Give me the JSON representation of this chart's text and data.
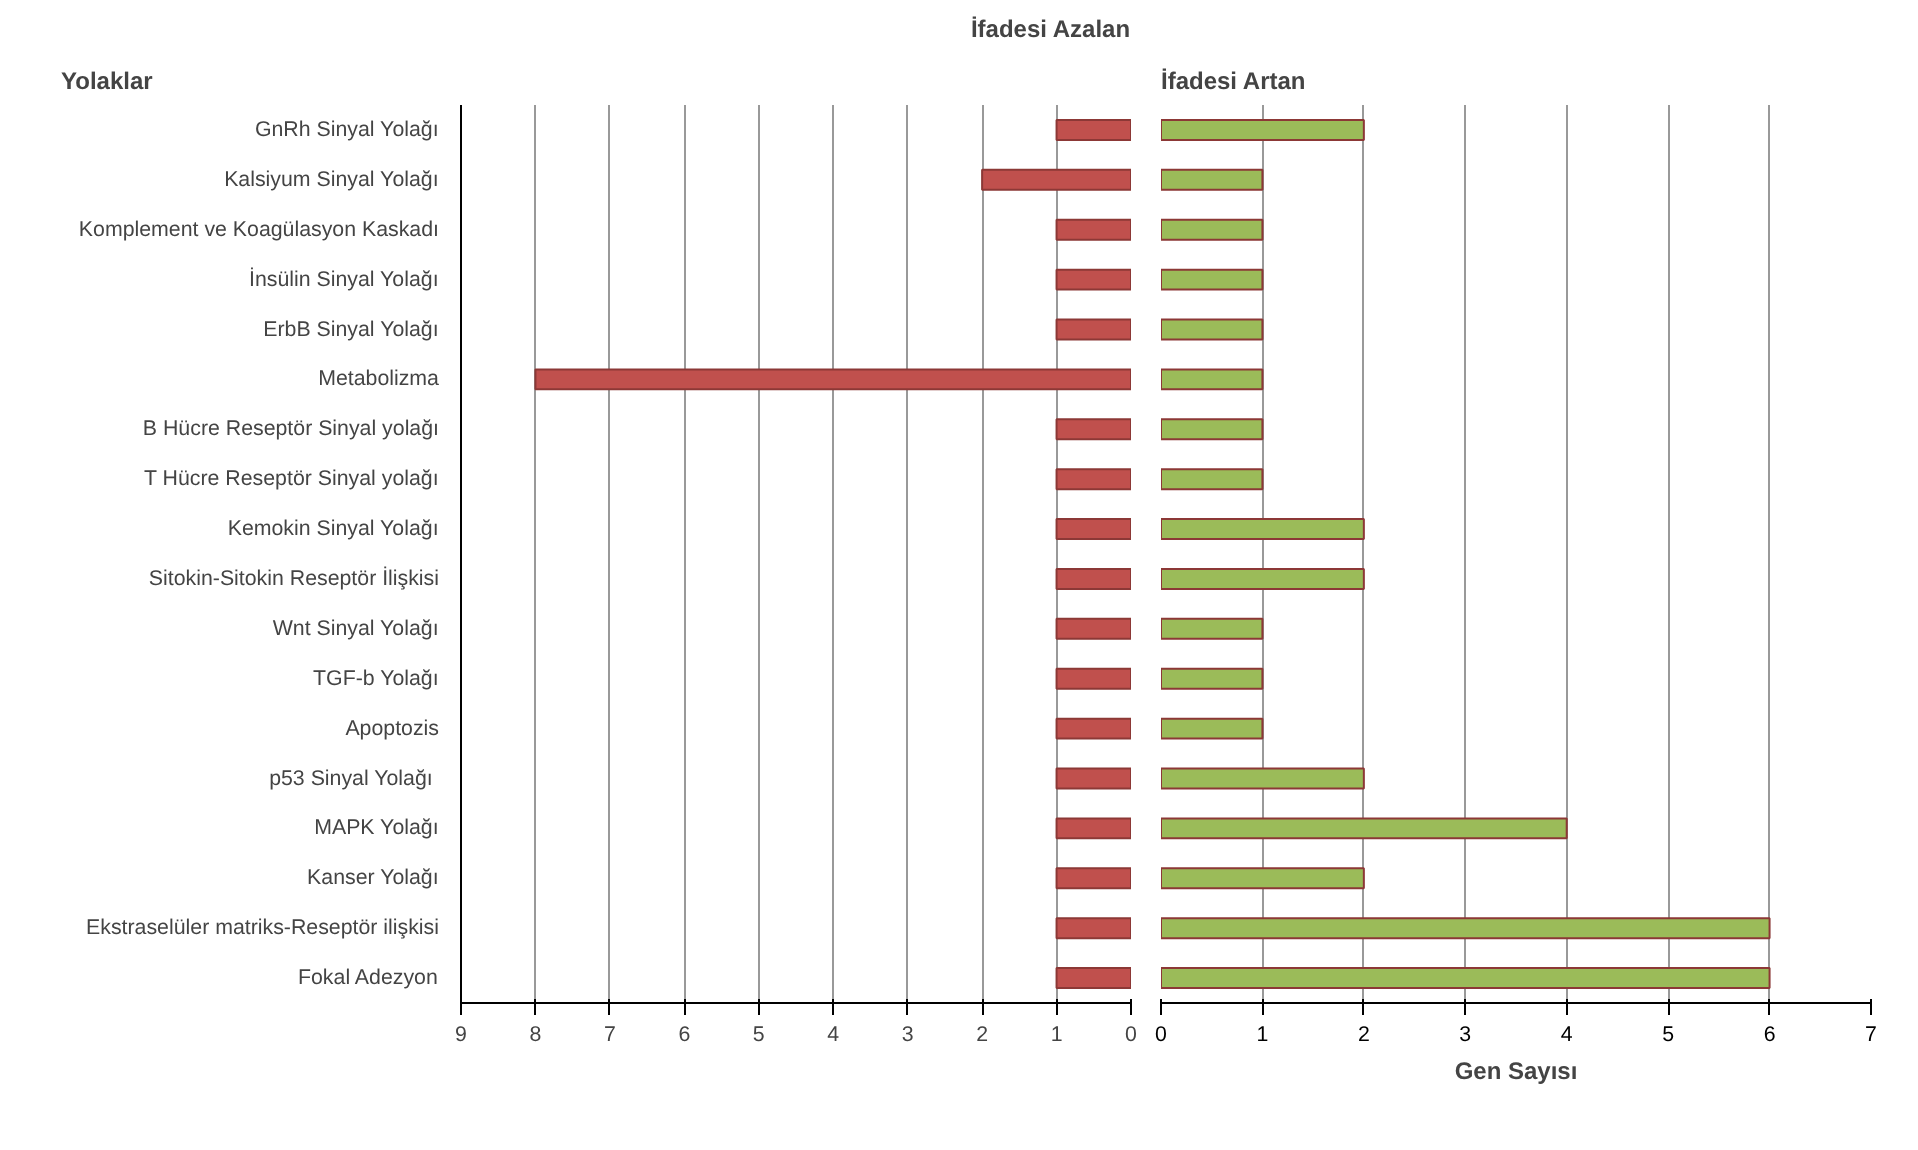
{
  "chart_data": [
    {
      "type": "bar",
      "orientation": "horizontal",
      "title": "İfadesi Azalan",
      "annotations": [
        "Yolaklar"
      ],
      "categories": [
        "GnRh Sinyal Yolağı",
        "Kalsiyum Sinyal Yolağı",
        "Komplement ve Koagülasyon Kaskadı",
        "İnsülin Sinyal Yolağı",
        "ErbB Sinyal Yolağı",
        "Metabolizma",
        "B Hücre Reseptör Sinyal yolağı",
        "T Hücre Reseptör Sinyal yolağı",
        "Kemokin Sinyal Yolağı",
        "Sitokin-Sitokin Reseptör İlişkisi",
        "Wnt Sinyal Yolağı",
        "TGF-b Yolağı",
        "Apoptozis",
        "p53 Sinyal  Yolağı",
        "MAPK Yolağı",
        "Kanser Yolağı",
        "Ekstraselüler matriks-Reseptör ilişkisi",
        "Fokal Adezyon"
      ],
      "values": [
        1,
        2,
        1,
        1,
        1,
        8,
        1,
        1,
        1,
        1,
        1,
        1,
        1,
        1,
        1,
        1,
        1,
        1
      ],
      "color": "#c0504d",
      "xlim": [
        9,
        0
      ],
      "xticks": [
        9,
        8,
        7,
        6,
        5,
        4,
        3,
        2,
        1,
        0
      ],
      "grid": "x"
    },
    {
      "type": "bar",
      "orientation": "horizontal",
      "title": "İfadesi Artan",
      "xlabel": "Gen Sayısı",
      "tick_labels": "x",
      "categories": [
        null,
        null,
        null,
        null,
        null,
        null,
        null,
        null,
        null,
        null,
        null,
        null,
        null,
        null,
        null,
        null,
        null,
        null
      ],
      "values": [
        2,
        1,
        1,
        1,
        1,
        1,
        1,
        1,
        2,
        2,
        1,
        1,
        1,
        2,
        4,
        2,
        6,
        6
      ],
      "color": "#9bbb59",
      "xlim": [
        0,
        7
      ],
      "xticks": [
        0,
        1,
        2,
        3,
        4,
        5,
        6,
        7
      ],
      "grid": "x"
    }
  ]
}
